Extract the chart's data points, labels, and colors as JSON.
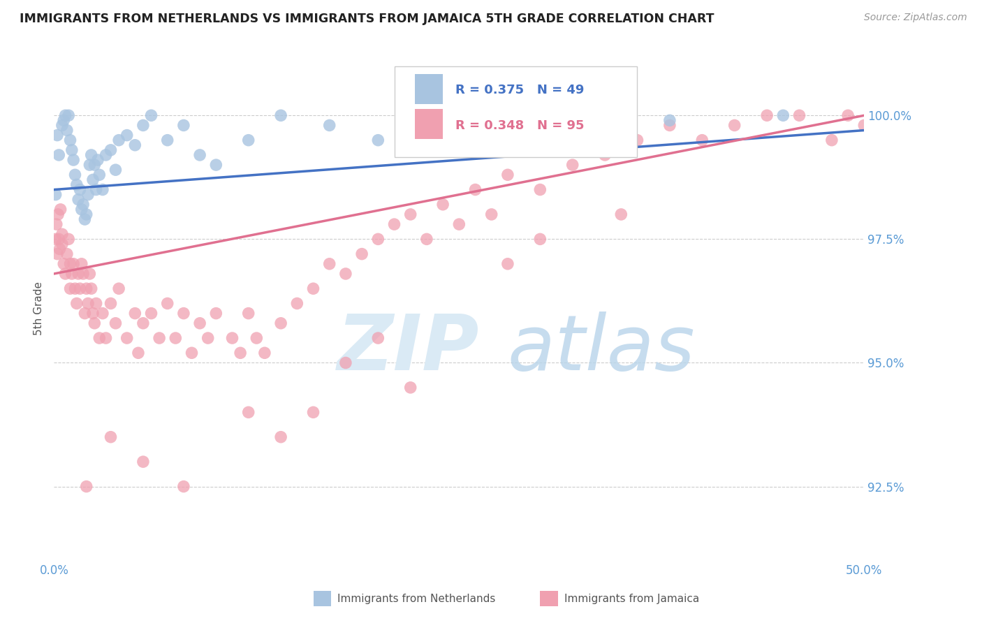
{
  "title": "IMMIGRANTS FROM NETHERLANDS VS IMMIGRANTS FROM JAMAICA 5TH GRADE CORRELATION CHART",
  "source_text": "Source: ZipAtlas.com",
  "ylabel": "5th Grade",
  "xlim": [
    0.0,
    50.0
  ],
  "ylim": [
    91.0,
    101.2
  ],
  "yticks": [
    92.5,
    95.0,
    97.5,
    100.0
  ],
  "ytick_labels": [
    "92.5%",
    "95.0%",
    "97.5%",
    "100.0%"
  ],
  "xtick_labels": [
    "0.0%",
    "50.0%"
  ],
  "netherlands_R": 0.375,
  "netherlands_N": 49,
  "jamaica_R": 0.348,
  "jamaica_N": 95,
  "netherlands_color": "#a8c4e0",
  "jamaica_color": "#f0a0b0",
  "netherlands_line_color": "#4472c4",
  "jamaica_line_color": "#e07090",
  "legend_label_netherlands": "Immigrants from Netherlands",
  "legend_label_jamaica": "Immigrants from Jamaica",
  "axis_color": "#5b9bd5",
  "background_color": "#ffffff",
  "nl_x": [
    0.1,
    0.2,
    0.3,
    0.5,
    0.6,
    0.7,
    0.8,
    0.9,
    1.0,
    1.1,
    1.2,
    1.3,
    1.4,
    1.5,
    1.6,
    1.7,
    1.8,
    1.9,
    2.0,
    2.1,
    2.2,
    2.3,
    2.4,
    2.5,
    2.6,
    2.7,
    2.8,
    3.0,
    3.2,
    3.5,
    3.8,
    4.0,
    4.5,
    5.0,
    5.5,
    6.0,
    7.0,
    8.0,
    9.0,
    10.0,
    12.0,
    14.0,
    17.0,
    20.0,
    24.0,
    28.0,
    32.0,
    38.0,
    45.0
  ],
  "nl_y": [
    98.4,
    99.6,
    99.2,
    99.8,
    99.9,
    100.0,
    99.7,
    100.0,
    99.5,
    99.3,
    99.1,
    98.8,
    98.6,
    98.3,
    98.5,
    98.1,
    98.2,
    97.9,
    98.0,
    98.4,
    99.0,
    99.2,
    98.7,
    99.0,
    98.5,
    99.1,
    98.8,
    98.5,
    99.2,
    99.3,
    98.9,
    99.5,
    99.6,
    99.4,
    99.8,
    100.0,
    99.5,
    99.8,
    99.2,
    99.0,
    99.5,
    100.0,
    99.8,
    99.5,
    100.0,
    99.8,
    100.0,
    99.9,
    100.0
  ],
  "jm_x": [
    0.1,
    0.15,
    0.2,
    0.25,
    0.3,
    0.35,
    0.4,
    0.5,
    0.5,
    0.6,
    0.7,
    0.8,
    0.9,
    1.0,
    1.0,
    1.1,
    1.2,
    1.3,
    1.4,
    1.5,
    1.6,
    1.7,
    1.8,
    1.9,
    2.0,
    2.1,
    2.2,
    2.3,
    2.4,
    2.5,
    2.6,
    2.8,
    3.0,
    3.2,
    3.5,
    3.8,
    4.0,
    4.5,
    5.0,
    5.2,
    5.5,
    6.0,
    6.5,
    7.0,
    7.5,
    8.0,
    8.5,
    9.0,
    9.5,
    10.0,
    11.0,
    11.5,
    12.0,
    12.5,
    13.0,
    14.0,
    15.0,
    16.0,
    17.0,
    18.0,
    19.0,
    20.0,
    21.0,
    22.0,
    23.0,
    24.0,
    25.0,
    26.0,
    27.0,
    28.0,
    30.0,
    32.0,
    34.0,
    36.0,
    38.0,
    40.0,
    42.0,
    44.0,
    46.0,
    48.0,
    49.0,
    50.0,
    28.0,
    30.0,
    35.0,
    18.0,
    20.0,
    22.0,
    12.0,
    14.0,
    16.0,
    8.0,
    5.5,
    3.5,
    2.0
  ],
  "jm_y": [
    97.5,
    97.8,
    97.2,
    98.0,
    97.5,
    97.3,
    98.1,
    97.6,
    97.4,
    97.0,
    96.8,
    97.2,
    97.5,
    97.0,
    96.5,
    96.8,
    97.0,
    96.5,
    96.2,
    96.8,
    96.5,
    97.0,
    96.8,
    96.0,
    96.5,
    96.2,
    96.8,
    96.5,
    96.0,
    95.8,
    96.2,
    95.5,
    96.0,
    95.5,
    96.2,
    95.8,
    96.5,
    95.5,
    96.0,
    95.2,
    95.8,
    96.0,
    95.5,
    96.2,
    95.5,
    96.0,
    95.2,
    95.8,
    95.5,
    96.0,
    95.5,
    95.2,
    96.0,
    95.5,
    95.2,
    95.8,
    96.2,
    96.5,
    97.0,
    96.8,
    97.2,
    97.5,
    97.8,
    98.0,
    97.5,
    98.2,
    97.8,
    98.5,
    98.0,
    98.8,
    98.5,
    99.0,
    99.2,
    99.5,
    99.8,
    99.5,
    99.8,
    100.0,
    100.0,
    99.5,
    100.0,
    99.8,
    97.0,
    97.5,
    98.0,
    95.0,
    95.5,
    94.5,
    94.0,
    93.5,
    94.0,
    92.5,
    93.0,
    93.5,
    92.5
  ],
  "nl_trend": [
    98.5,
    99.7
  ],
  "jm_trend": [
    96.8,
    100.0
  ]
}
